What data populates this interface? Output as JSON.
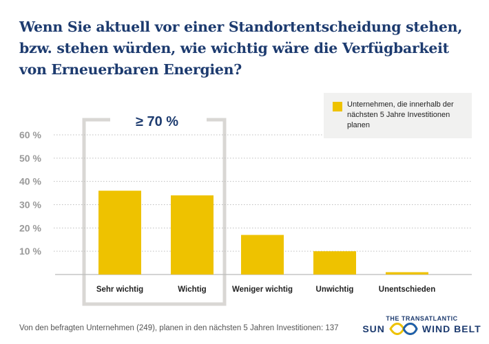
{
  "title": "Wenn Sie aktuell vor einer Standortentscheidung stehen, bzw. stehen würden, wie wichtig wäre die Verfügbarkeit von Erneuerbaren Energien?",
  "bracket_label": "≥ 70 %",
  "footnote": "Von den befragten Unternehmen (249), planen in den nächsten 5 Jahren Investitionen: 137",
  "logo": {
    "line1": "THE TRANSATLANTIC",
    "left": "SUN",
    "right": "WIND BELT"
  },
  "colors": {
    "bar": "#eec200",
    "title": "#1d3b6f",
    "bracket": "#d9d7d4"
  },
  "chart_data": {
    "type": "bar",
    "categories": [
      "Sehr wichtig",
      "Wichtig",
      "Weniger wichtig",
      "Unwichtig",
      "Unentschieden"
    ],
    "series": [
      {
        "name": "Unternehmen, die innerhalb der nächsten 5 Jahre Investitionen planen",
        "values": [
          36,
          34,
          17,
          10,
          1
        ]
      }
    ],
    "yticks": [
      "10 %",
      "20 %",
      "30 %",
      "40 %",
      "50 %",
      "60 %"
    ],
    "ylim": [
      0,
      60
    ],
    "grid": true,
    "legend": "top-right",
    "annotation": "≥ 70 % (Sehr wichtig + Wichtig)"
  }
}
